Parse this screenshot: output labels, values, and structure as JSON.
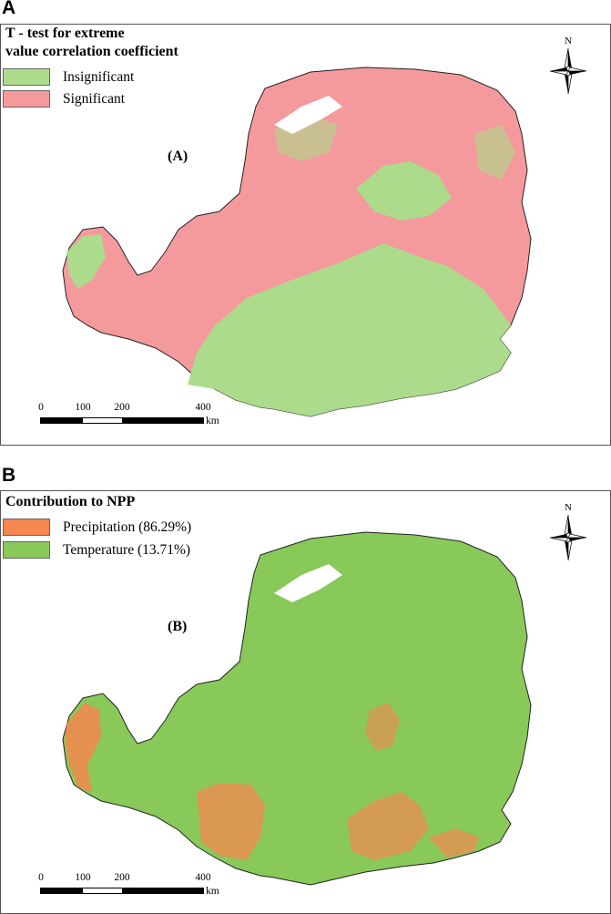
{
  "panels": [
    {
      "letter": "A",
      "legend_title_line1": "T - test for extreme",
      "legend_title_line2": "value correlation coefficient",
      "legend": [
        {
          "label": "Insignificant",
          "color": "#acdb8c"
        },
        {
          "label": "Significant",
          "color": "#f59a9c"
        }
      ],
      "map_label": "(A)",
      "north": "N"
    },
    {
      "letter": "B",
      "legend_title_line1": "Contribution to NPP",
      "legend": [
        {
          "label": "Precipitation (86.29%)",
          "color": "#f5874f"
        },
        {
          "label": "Temperature (13.71%)",
          "color": "#88c95a"
        }
      ],
      "map_label": "(B)",
      "north": "N"
    }
  ],
  "scale": {
    "ticks": [
      "0",
      "100",
      "200",
      "400"
    ],
    "unit": "km"
  }
}
